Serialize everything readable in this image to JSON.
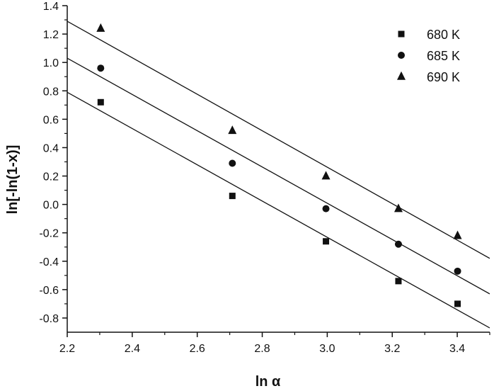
{
  "chart_data": {
    "type": "scatter",
    "title": "",
    "xlabel": "ln α",
    "ylabel": "ln[-ln(1-x)]",
    "xlim": [
      2.2,
      3.5
    ],
    "ylim": [
      -0.9,
      1.4
    ],
    "xticks": [
      2.2,
      2.4,
      2.6,
      2.8,
      3.0,
      3.2,
      3.4
    ],
    "xtick_labels": [
      "2.2",
      "2.4",
      "2.6",
      "2.8",
      "3.0",
      "3.2",
      "3.4"
    ],
    "yticks": [
      -0.8,
      -0.6,
      -0.4,
      -0.2,
      0.0,
      0.2,
      0.4,
      0.6,
      0.8,
      1.0,
      1.2,
      1.4
    ],
    "ytick_labels": [
      "-0.8",
      "-0.6",
      "-0.4",
      "-0.2",
      "0.0",
      "0.2",
      "0.4",
      "0.6",
      "0.8",
      "1.0",
      "1.2",
      "1.4"
    ],
    "grid": false,
    "legend_position": "top-right",
    "series": [
      {
        "name": "680 K",
        "marker": "square",
        "x": [
          2.303,
          2.708,
          2.996,
          3.219,
          3.401
        ],
        "y": [
          0.72,
          0.06,
          -0.26,
          -0.54,
          -0.7
        ],
        "fit": {
          "x": [
            2.2,
            3.5
          ],
          "y": [
            0.79,
            -0.87
          ]
        }
      },
      {
        "name": "685 K",
        "marker": "circle",
        "x": [
          2.303,
          2.708,
          2.996,
          3.219,
          3.401
        ],
        "y": [
          0.96,
          0.29,
          -0.03,
          -0.28,
          -0.47
        ],
        "fit": {
          "x": [
            2.2,
            3.5
          ],
          "y": [
            1.03,
            -0.63
          ]
        }
      },
      {
        "name": "690 K",
        "marker": "triangle",
        "x": [
          2.303,
          2.708,
          2.996,
          3.219,
          3.401
        ],
        "y": [
          1.24,
          0.52,
          0.2,
          -0.03,
          -0.22
        ],
        "fit": {
          "x": [
            2.2,
            3.5
          ],
          "y": [
            1.29,
            -0.38
          ]
        }
      }
    ]
  },
  "colors": {
    "ink": "#111111",
    "background": "#ffffff"
  }
}
